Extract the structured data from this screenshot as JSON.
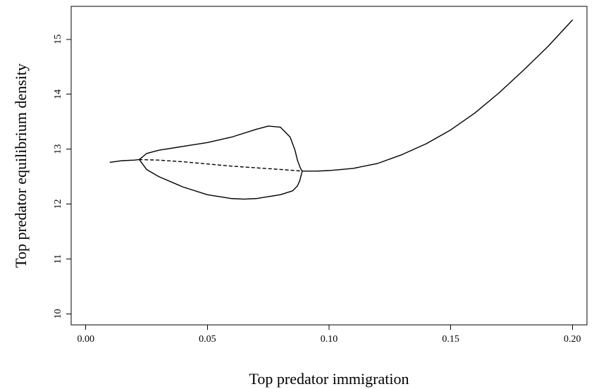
{
  "chart_data": {
    "type": "line",
    "title": "",
    "xlabel": "Top predator immigration",
    "ylabel": "Top predator equilibrium density",
    "xlim": [
      -0.006,
      0.206
    ],
    "ylim": [
      9.8,
      15.6
    ],
    "x_ticks": [
      0.0,
      0.05,
      0.1,
      0.15,
      0.2
    ],
    "x_tick_labels": [
      "0.00",
      "0.05",
      "0.10",
      "0.15",
      "0.20"
    ],
    "y_ticks": [
      10,
      11,
      12,
      13,
      14,
      15
    ],
    "y_tick_labels": [
      "10",
      "11",
      "12",
      "13",
      "14",
      "15"
    ],
    "grid": false,
    "legend": "none",
    "series": [
      {
        "style": "solid",
        "x": [
          0.01,
          0.015,
          0.02,
          0.022
        ],
        "y": [
          12.76,
          12.79,
          12.8,
          12.81
        ]
      },
      {
        "style": "solid",
        "x": [
          0.022,
          0.025,
          0.03,
          0.04,
          0.05,
          0.06,
          0.07,
          0.075,
          0.08,
          0.084,
          0.086,
          0.087,
          0.088,
          0.0885,
          0.089
        ],
        "y": [
          12.81,
          12.92,
          12.98,
          13.05,
          13.12,
          13.22,
          13.36,
          13.42,
          13.4,
          13.22,
          12.98,
          12.8,
          12.68,
          12.63,
          12.6
        ]
      },
      {
        "style": "solid",
        "x": [
          0.022,
          0.025,
          0.03,
          0.04,
          0.05,
          0.06,
          0.065,
          0.07,
          0.08,
          0.085,
          0.087,
          0.088,
          0.0885,
          0.089
        ],
        "y": [
          12.81,
          12.63,
          12.5,
          12.31,
          12.17,
          12.1,
          12.09,
          12.1,
          12.17,
          12.24,
          12.33,
          12.43,
          12.52,
          12.6
        ]
      },
      {
        "style": "dashed",
        "x": [
          0.022,
          0.03,
          0.04,
          0.05,
          0.06,
          0.07,
          0.08,
          0.089
        ],
        "y": [
          12.81,
          12.8,
          12.77,
          12.73,
          12.69,
          12.66,
          12.63,
          12.6
        ]
      },
      {
        "style": "solid",
        "x": [
          0.089,
          0.095,
          0.1,
          0.11,
          0.12,
          0.13,
          0.14,
          0.15,
          0.16,
          0.17,
          0.18,
          0.19,
          0.2
        ],
        "y": [
          12.6,
          12.6,
          12.61,
          12.65,
          12.74,
          12.9,
          13.1,
          13.35,
          13.66,
          14.03,
          14.44,
          14.87,
          15.35
        ]
      }
    ]
  }
}
